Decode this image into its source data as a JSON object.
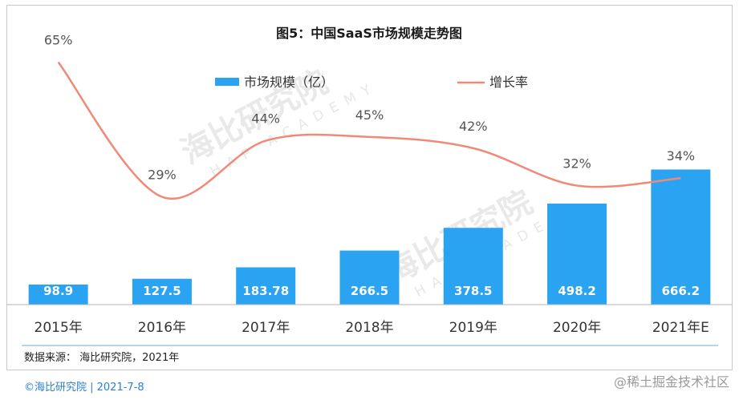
{
  "chart_data": {
    "type": "bar",
    "title": "图5：中国SaaS市场规模走势图",
    "categories": [
      "2015年",
      "2016年",
      "2017年",
      "2018年",
      "2019年",
      "2020年",
      "2021年E"
    ],
    "series": [
      {
        "name": "市场规模（亿）",
        "type": "bar",
        "values": [
          98.9,
          127.5,
          183.78,
          266.5,
          378.5,
          498.2,
          666.2
        ],
        "color": "#2aa3f3"
      },
      {
        "name": "增长率",
        "type": "line",
        "values": [
          65,
          29,
          44,
          45,
          42,
          32,
          34
        ],
        "unit": "%",
        "color": "#f08a78"
      }
    ],
    "bar_labels": [
      "98.9",
      "127.5",
      "183.78",
      "266.5",
      "378.5",
      "498.2",
      "666.2"
    ],
    "rate_labels": [
      "65%",
      "29%",
      "44%",
      "45%",
      "42%",
      "32%",
      "34%"
    ],
    "legend_placement": "top-center",
    "grid": false,
    "source": "数据来源： 海比研究院，2021年"
  },
  "watermark": {
    "text": "海比研究院",
    "sub": "HAP ACADEMY"
  },
  "footer": {
    "left": "©海比研究院  |  2021-7-8",
    "right": "@稀土掘金技术社区"
  }
}
